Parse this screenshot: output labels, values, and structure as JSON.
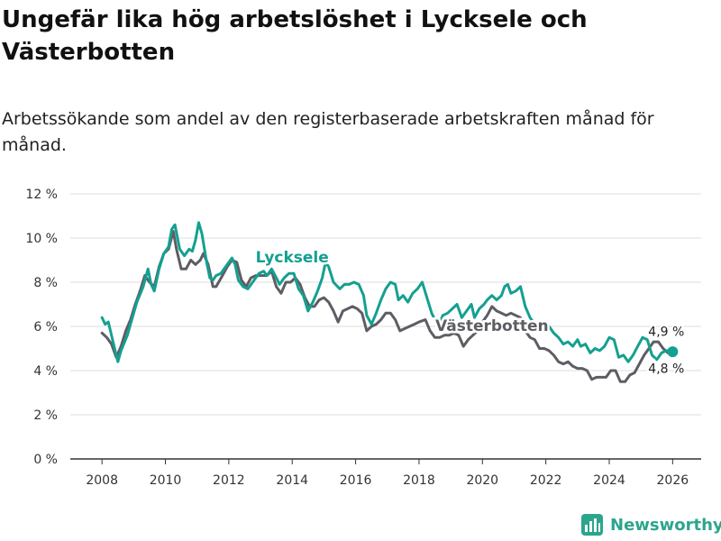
{
  "title": "Ungefär lika hög arbetslöshet i Lycksele och Västerbotten",
  "subtitle": "Arbetssökande som andel av den registerbaserade arbetskraften månad för månad.",
  "brand": {
    "name": "Newsworthy",
    "icon": "bar-chart-icon",
    "color": "#2ca58d"
  },
  "chart_data": {
    "type": "line",
    "ylim": [
      0,
      12
    ],
    "yticks": [
      0,
      2,
      4,
      6,
      8,
      10,
      12
    ],
    "ytick_labels": [
      "0 %",
      "2 %",
      "4 %",
      "6 %",
      "8 %",
      "10 %",
      "12 %"
    ],
    "xlim": [
      2007,
      2026.9
    ],
    "xticks": [
      2008,
      2010,
      2012,
      2014,
      2016,
      2018,
      2020,
      2022,
      2024,
      2026
    ],
    "xtick_labels": [
      "2008",
      "2010",
      "2012",
      "2014",
      "2016",
      "2018",
      "2020",
      "2022",
      "2024",
      "2026"
    ],
    "grid": true,
    "series": [
      {
        "name": "Lycksele",
        "color": "#14a090",
        "label": "Lycksele",
        "end_label": "4,9 %",
        "points": [
          [
            2008.0,
            6.4
          ],
          [
            2008.1,
            6.1
          ],
          [
            2008.2,
            6.2
          ],
          [
            2008.3,
            5.6
          ],
          [
            2008.4,
            5.0
          ],
          [
            2008.5,
            4.4
          ],
          [
            2008.6,
            4.9
          ],
          [
            2008.8,
            5.6
          ],
          [
            2008.9,
            6.1
          ],
          [
            2009.1,
            7.1
          ],
          [
            2009.3,
            7.8
          ],
          [
            2009.45,
            8.6
          ],
          [
            2009.55,
            7.9
          ],
          [
            2009.65,
            7.6
          ],
          [
            2009.8,
            8.6
          ],
          [
            2009.95,
            9.3
          ],
          [
            2010.1,
            9.6
          ],
          [
            2010.2,
            10.4
          ],
          [
            2010.3,
            10.6
          ],
          [
            2010.45,
            9.5
          ],
          [
            2010.6,
            9.2
          ],
          [
            2010.75,
            9.5
          ],
          [
            2010.85,
            9.4
          ],
          [
            2010.95,
            9.9
          ],
          [
            2011.05,
            10.7
          ],
          [
            2011.15,
            10.2
          ],
          [
            2011.3,
            8.9
          ],
          [
            2011.4,
            8.2
          ],
          [
            2011.5,
            8.1
          ],
          [
            2011.6,
            8.3
          ],
          [
            2011.75,
            8.4
          ],
          [
            2011.85,
            8.6
          ],
          [
            2012.0,
            8.9
          ],
          [
            2012.1,
            9.1
          ],
          [
            2012.2,
            8.8
          ],
          [
            2012.3,
            8.1
          ],
          [
            2012.45,
            7.8
          ],
          [
            2012.6,
            7.7
          ],
          [
            2012.8,
            8.1
          ],
          [
            2012.95,
            8.4
          ],
          [
            2013.1,
            8.5
          ],
          [
            2013.2,
            8.3
          ],
          [
            2013.35,
            8.6
          ],
          [
            2013.5,
            8.2
          ],
          [
            2013.6,
            7.9
          ],
          [
            2013.75,
            8.2
          ],
          [
            2013.9,
            8.4
          ],
          [
            2014.05,
            8.4
          ],
          [
            2014.2,
            7.7
          ],
          [
            2014.35,
            7.4
          ],
          [
            2014.5,
            6.7
          ],
          [
            2014.65,
            7.1
          ],
          [
            2014.8,
            7.6
          ],
          [
            2014.95,
            8.2
          ],
          [
            2015.05,
            8.9
          ],
          [
            2015.15,
            8.7
          ],
          [
            2015.3,
            8.0
          ],
          [
            2015.5,
            7.7
          ],
          [
            2015.65,
            7.9
          ],
          [
            2015.8,
            7.9
          ],
          [
            2015.95,
            8.0
          ],
          [
            2016.1,
            7.9
          ],
          [
            2016.25,
            7.4
          ],
          [
            2016.35,
            6.5
          ],
          [
            2016.5,
            6.1
          ],
          [
            2016.65,
            6.6
          ],
          [
            2016.8,
            7.2
          ],
          [
            2016.95,
            7.7
          ],
          [
            2017.1,
            8.0
          ],
          [
            2017.25,
            7.9
          ],
          [
            2017.35,
            7.2
          ],
          [
            2017.5,
            7.4
          ],
          [
            2017.65,
            7.1
          ],
          [
            2017.8,
            7.5
          ],
          [
            2017.95,
            7.7
          ],
          [
            2018.1,
            8.0
          ],
          [
            2018.25,
            7.3
          ],
          [
            2018.4,
            6.6
          ],
          [
            2018.5,
            6.3
          ],
          [
            2018.6,
            6.0
          ],
          [
            2018.75,
            6.5
          ],
          [
            2018.9,
            6.6
          ],
          [
            2019.05,
            6.8
          ],
          [
            2019.2,
            7.0
          ],
          [
            2019.35,
            6.4
          ],
          [
            2019.5,
            6.7
          ],
          [
            2019.65,
            7.0
          ],
          [
            2019.75,
            6.4
          ],
          [
            2019.9,
            6.8
          ],
          [
            2020.05,
            7.0
          ],
          [
            2020.15,
            7.2
          ],
          [
            2020.3,
            7.4
          ],
          [
            2020.45,
            7.2
          ],
          [
            2020.6,
            7.4
          ],
          [
            2020.7,
            7.8
          ],
          [
            2020.8,
            7.9
          ],
          [
            2020.9,
            7.5
          ],
          [
            2021.05,
            7.6
          ],
          [
            2021.2,
            7.8
          ],
          [
            2021.35,
            6.9
          ],
          [
            2021.5,
            6.4
          ],
          [
            2021.65,
            6.1
          ],
          [
            2021.8,
            6.1
          ],
          [
            2021.95,
            5.8
          ],
          [
            2022.1,
            6.0
          ],
          [
            2022.25,
            5.7
          ],
          [
            2022.4,
            5.5
          ],
          [
            2022.55,
            5.2
          ],
          [
            2022.7,
            5.3
          ],
          [
            2022.85,
            5.1
          ],
          [
            2023.0,
            5.4
          ],
          [
            2023.1,
            5.1
          ],
          [
            2023.25,
            5.2
          ],
          [
            2023.4,
            4.8
          ],
          [
            2023.55,
            5.0
          ],
          [
            2023.7,
            4.9
          ],
          [
            2023.85,
            5.1
          ],
          [
            2024.0,
            5.5
          ],
          [
            2024.15,
            5.4
          ],
          [
            2024.3,
            4.6
          ],
          [
            2024.45,
            4.7
          ],
          [
            2024.6,
            4.4
          ],
          [
            2024.75,
            4.7
          ],
          [
            2024.9,
            5.1
          ],
          [
            2025.05,
            5.5
          ],
          [
            2025.2,
            5.4
          ],
          [
            2025.35,
            4.7
          ],
          [
            2025.5,
            4.5
          ],
          [
            2025.65,
            4.8
          ],
          [
            2025.8,
            4.9
          ],
          [
            2026.0,
            4.9
          ]
        ]
      },
      {
        "name": "Västerbotten",
        "color": "#5e5d64",
        "label": "Västerbotten",
        "end_label": "4,8 %",
        "points": [
          [
            2008.0,
            5.7
          ],
          [
            2008.15,
            5.5
          ],
          [
            2008.3,
            5.2
          ],
          [
            2008.45,
            4.6
          ],
          [
            2008.6,
            5.1
          ],
          [
            2008.75,
            5.8
          ],
          [
            2008.9,
            6.3
          ],
          [
            2009.05,
            7.0
          ],
          [
            2009.2,
            7.6
          ],
          [
            2009.35,
            8.3
          ],
          [
            2009.5,
            8.0
          ],
          [
            2009.65,
            7.8
          ],
          [
            2009.8,
            8.7
          ],
          [
            2009.95,
            9.3
          ],
          [
            2010.1,
            9.5
          ],
          [
            2010.25,
            10.3
          ],
          [
            2010.35,
            9.5
          ],
          [
            2010.5,
            8.6
          ],
          [
            2010.65,
            8.6
          ],
          [
            2010.8,
            9.0
          ],
          [
            2010.95,
            8.8
          ],
          [
            2011.1,
            9.0
          ],
          [
            2011.2,
            9.3
          ],
          [
            2011.35,
            8.8
          ],
          [
            2011.5,
            7.8
          ],
          [
            2011.6,
            7.8
          ],
          [
            2011.8,
            8.3
          ],
          [
            2011.95,
            8.7
          ],
          [
            2012.1,
            9.0
          ],
          [
            2012.25,
            8.9
          ],
          [
            2012.4,
            8.1
          ],
          [
            2012.55,
            7.8
          ],
          [
            2012.7,
            8.2
          ],
          [
            2012.85,
            8.3
          ],
          [
            2013.0,
            8.3
          ],
          [
            2013.2,
            8.3
          ],
          [
            2013.35,
            8.5
          ],
          [
            2013.5,
            7.8
          ],
          [
            2013.65,
            7.5
          ],
          [
            2013.8,
            8.0
          ],
          [
            2013.95,
            8.0
          ],
          [
            2014.1,
            8.2
          ],
          [
            2014.25,
            7.9
          ],
          [
            2014.4,
            7.3
          ],
          [
            2014.55,
            6.9
          ],
          [
            2014.7,
            6.9
          ],
          [
            2014.85,
            7.2
          ],
          [
            2015.0,
            7.3
          ],
          [
            2015.15,
            7.1
          ],
          [
            2015.3,
            6.7
          ],
          [
            2015.45,
            6.2
          ],
          [
            2015.6,
            6.7
          ],
          [
            2015.75,
            6.8
          ],
          [
            2015.9,
            6.9
          ],
          [
            2016.05,
            6.8
          ],
          [
            2016.2,
            6.6
          ],
          [
            2016.35,
            5.8
          ],
          [
            2016.5,
            6.0
          ],
          [
            2016.65,
            6.1
          ],
          [
            2016.8,
            6.3
          ],
          [
            2016.95,
            6.6
          ],
          [
            2017.1,
            6.6
          ],
          [
            2017.25,
            6.3
          ],
          [
            2017.4,
            5.8
          ],
          [
            2017.55,
            5.9
          ],
          [
            2017.7,
            6.0
          ],
          [
            2017.85,
            6.1
          ],
          [
            2018.0,
            6.2
          ],
          [
            2018.2,
            6.3
          ],
          [
            2018.35,
            5.8
          ],
          [
            2018.5,
            5.5
          ],
          [
            2018.65,
            5.5
          ],
          [
            2018.8,
            5.6
          ],
          [
            2018.95,
            5.6
          ],
          [
            2019.1,
            5.7
          ],
          [
            2019.25,
            5.6
          ],
          [
            2019.4,
            5.1
          ],
          [
            2019.55,
            5.4
          ],
          [
            2019.7,
            5.6
          ],
          [
            2019.85,
            5.8
          ],
          [
            2020.0,
            6.2
          ],
          [
            2020.15,
            6.5
          ],
          [
            2020.3,
            6.9
          ],
          [
            2020.45,
            6.7
          ],
          [
            2020.6,
            6.6
          ],
          [
            2020.75,
            6.5
          ],
          [
            2020.9,
            6.6
          ],
          [
            2021.05,
            6.5
          ],
          [
            2021.2,
            6.4
          ],
          [
            2021.35,
            5.8
          ],
          [
            2021.5,
            5.5
          ],
          [
            2021.65,
            5.4
          ],
          [
            2021.8,
            5.0
          ],
          [
            2021.95,
            5.0
          ],
          [
            2022.1,
            4.9
          ],
          [
            2022.25,
            4.7
          ],
          [
            2022.4,
            4.4
          ],
          [
            2022.55,
            4.3
          ],
          [
            2022.7,
            4.4
          ],
          [
            2022.85,
            4.2
          ],
          [
            2023.0,
            4.1
          ],
          [
            2023.15,
            4.1
          ],
          [
            2023.3,
            4.0
          ],
          [
            2023.45,
            3.6
          ],
          [
            2023.6,
            3.7
          ],
          [
            2023.75,
            3.7
          ],
          [
            2023.9,
            3.7
          ],
          [
            2024.05,
            4.0
          ],
          [
            2024.2,
            4.0
          ],
          [
            2024.35,
            3.5
          ],
          [
            2024.5,
            3.5
          ],
          [
            2024.65,
            3.8
          ],
          [
            2024.8,
            3.9
          ],
          [
            2024.95,
            4.3
          ],
          [
            2025.1,
            4.7
          ],
          [
            2025.25,
            5.0
          ],
          [
            2025.4,
            5.3
          ],
          [
            2025.55,
            5.3
          ],
          [
            2025.7,
            5.0
          ],
          [
            2025.85,
            4.8
          ],
          [
            2026.0,
            4.8
          ]
        ]
      }
    ]
  }
}
